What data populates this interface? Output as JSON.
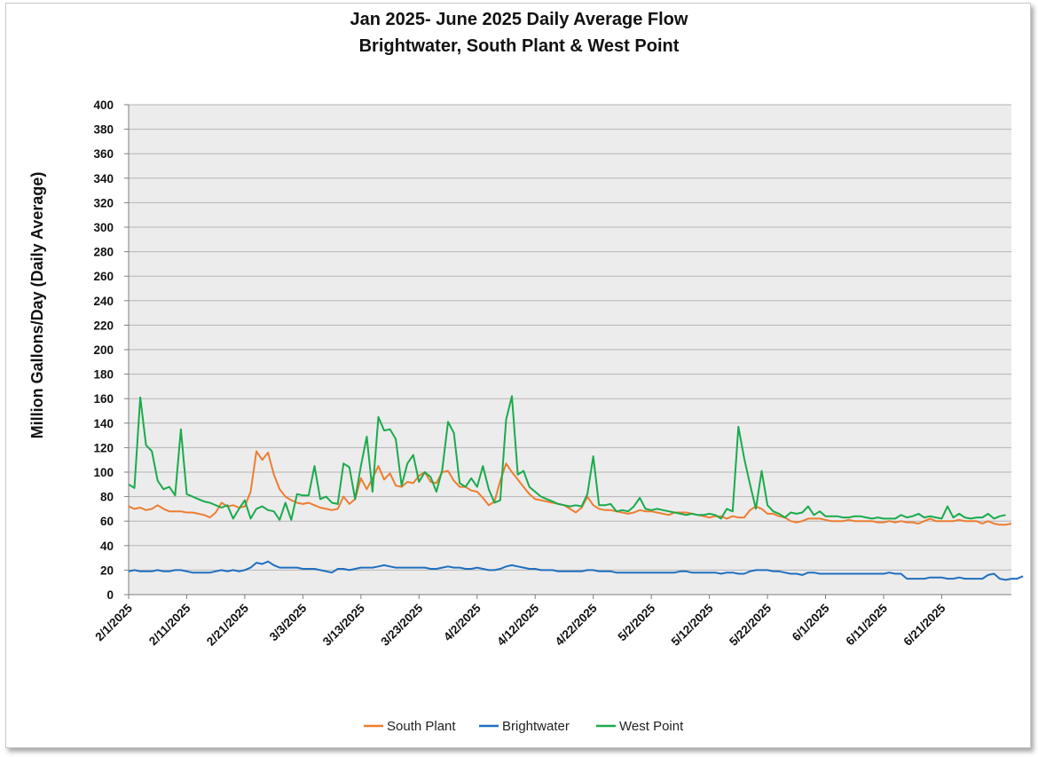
{
  "chart_data": {
    "type": "line",
    "title": "Jan 2025- June 2025 Daily Average Flow",
    "subtitle": "Brightwater, South Plant & West Point",
    "xlabel": "",
    "ylabel": "Million Gallons/Day (Daily Average)",
    "ylim": [
      0,
      400
    ],
    "yticks": [
      0,
      20,
      40,
      60,
      80,
      100,
      120,
      140,
      160,
      180,
      200,
      220,
      240,
      260,
      280,
      300,
      320,
      340,
      360,
      380,
      400
    ],
    "x_start": "2025-02-01",
    "xticks": [
      "2/1/2025",
      "2/11/2025",
      "2/21/2025",
      "3/3/2025",
      "3/13/2025",
      "3/23/2025",
      "4/2/2025",
      "4/12/2025",
      "4/22/2025",
      "5/2/2025",
      "5/12/2025",
      "5/22/2025",
      "6/1/2025",
      "6/11/2025",
      "6/21/2025"
    ],
    "grid": true,
    "legend_position": "bottom",
    "series": [
      {
        "name": "South Plant",
        "color": "#ed7d31",
        "values": [
          72,
          70,
          71,
          69,
          70,
          73,
          70,
          68,
          68,
          68,
          67,
          67,
          66,
          65,
          63,
          67,
          75,
          72,
          73,
          71,
          72,
          84,
          117,
          110,
          116,
          98,
          86,
          80,
          77,
          75,
          74,
          75,
          73,
          71,
          70,
          69,
          70,
          80,
          74,
          78,
          95,
          86,
          95,
          105,
          94,
          99,
          89,
          88,
          92,
          91,
          97,
          100,
          92,
          91,
          100,
          101,
          93,
          88,
          88,
          85,
          84,
          79,
          73,
          76,
          93,
          107,
          100,
          94,
          88,
          82,
          78,
          77,
          76,
          75,
          74,
          73,
          70,
          67,
          71,
          80,
          73,
          70,
          69,
          69,
          68,
          67,
          66,
          67,
          69,
          68,
          68,
          67,
          66,
          65,
          67,
          67,
          67,
          66,
          65,
          64,
          63,
          64,
          64,
          62,
          64,
          63,
          63,
          69,
          72,
          70,
          66,
          66,
          64,
          63,
          60,
          59,
          60,
          62,
          62,
          62,
          61,
          60,
          60,
          60,
          61,
          60,
          60,
          60,
          60,
          59,
          59,
          60,
          59,
          60,
          59,
          59,
          58,
          60,
          62,
          60,
          60,
          60,
          60,
          61,
          60,
          60,
          60,
          58,
          60,
          58,
          57,
          57,
          58
        ]
      },
      {
        "name": "Brightwater",
        "color": "#1f6fbf",
        "values": [
          19,
          20,
          19,
          19,
          19,
          20,
          19,
          19,
          20,
          20,
          19,
          18,
          18,
          18,
          18,
          19,
          20,
          19,
          20,
          19,
          20,
          22,
          26,
          25,
          27,
          24,
          22,
          22,
          22,
          22,
          21,
          21,
          21,
          20,
          19,
          18,
          21,
          21,
          20,
          21,
          22,
          22,
          22,
          23,
          24,
          23,
          22,
          22,
          22,
          22,
          22,
          22,
          21,
          21,
          22,
          23,
          22,
          22,
          21,
          21,
          22,
          21,
          20,
          20,
          21,
          23,
          24,
          23,
          22,
          21,
          21,
          20,
          20,
          20,
          19,
          19,
          19,
          19,
          19,
          20,
          20,
          19,
          19,
          19,
          18,
          18,
          18,
          18,
          18,
          18,
          18,
          18,
          18,
          18,
          18,
          19,
          19,
          18,
          18,
          18,
          18,
          18,
          17,
          18,
          18,
          17,
          17,
          19,
          20,
          20,
          20,
          19,
          19,
          18,
          17,
          17,
          16,
          18,
          18,
          17,
          17,
          17,
          17,
          17,
          17,
          17,
          17,
          17,
          17,
          17,
          17,
          18,
          17,
          17,
          13,
          13,
          13,
          13,
          14,
          14,
          14,
          13,
          13,
          14,
          13,
          13,
          13,
          13,
          16,
          17,
          13,
          12,
          13,
          13,
          15
        ]
      },
      {
        "name": "West Point",
        "color": "#1aab4b",
        "values": [
          90,
          87,
          161,
          122,
          117,
          93,
          86,
          88,
          81,
          135,
          82,
          80,
          78,
          76,
          75,
          73,
          71,
          73,
          62,
          70,
          77,
          62,
          70,
          72,
          69,
          68,
          61,
          75,
          61,
          82,
          81,
          81,
          105,
          78,
          80,
          75,
          74,
          107,
          104,
          78,
          105,
          129,
          84,
          145,
          134,
          135,
          127,
          89,
          107,
          114,
          92,
          100,
          96,
          84,
          102,
          141,
          132,
          91,
          88,
          95,
          88,
          105,
          86,
          75,
          77,
          143,
          162,
          98,
          101,
          88,
          84,
          80,
          78,
          76,
          74,
          73,
          72,
          73,
          72,
          82,
          113,
          73,
          73,
          74,
          68,
          69,
          68,
          72,
          79,
          70,
          69,
          70,
          69,
          68,
          67,
          66,
          65,
          66,
          65,
          65,
          66,
          65,
          62,
          70,
          68,
          137,
          111,
          90,
          70,
          101,
          73,
          68,
          66,
          63,
          67,
          66,
          67,
          72,
          65,
          68,
          64,
          64,
          64,
          63,
          63,
          64,
          64,
          63,
          62,
          63,
          62,
          62,
          62,
          65,
          63,
          64,
          66,
          63,
          64,
          63,
          62,
          72,
          63,
          66,
          63,
          62,
          63,
          63,
          66,
          62,
          64,
          65
        ]
      }
    ]
  }
}
